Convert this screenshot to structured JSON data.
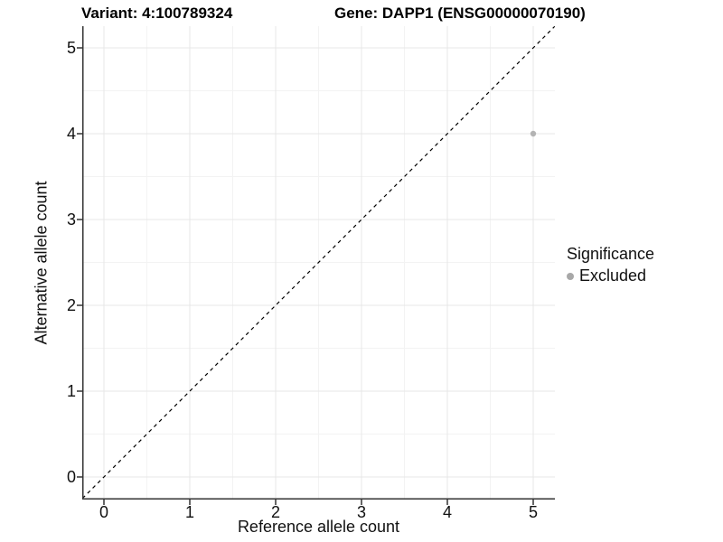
{
  "figure": {
    "title_left": "Variant: 4:100789324",
    "title_right": "Gene: DAPP1 (ENSG00000070190)"
  },
  "chart_data": {
    "type": "scatter",
    "title": "Variant: 4:100789324  |  Gene: DAPP1 (ENSG00000070190)",
    "xlabel": "Reference allele count",
    "ylabel": "Alternative allele count",
    "xlim": [
      -0.25,
      5.25
    ],
    "ylim": [
      -0.25,
      5.25
    ],
    "x_ticks": [
      0,
      1,
      2,
      3,
      4,
      5
    ],
    "y_ticks": [
      0,
      1,
      2,
      3,
      4,
      5
    ],
    "grid": "major+minor",
    "series": [
      {
        "name": "Excluded",
        "marker": "circle",
        "color": "#b3b3b3",
        "points": [
          {
            "x": 5,
            "y": 4
          }
        ]
      }
    ],
    "reference_line": {
      "equation": "y = x",
      "style": "dashed",
      "color": "#000000",
      "from": [
        -0.25,
        -0.25
      ],
      "to": [
        5.25,
        5.25
      ]
    },
    "legend": {
      "title": "Significance",
      "position": "right",
      "items": [
        {
          "label": "Excluded",
          "color": "#a8a8a8"
        }
      ]
    },
    "colors": {
      "grid_major": "#e7e7e7",
      "grid_minor": "#f3f3f3",
      "axis_line": "#333333",
      "tick": "#333333",
      "point": "#b3b3b3",
      "background": "#ffffff"
    }
  }
}
